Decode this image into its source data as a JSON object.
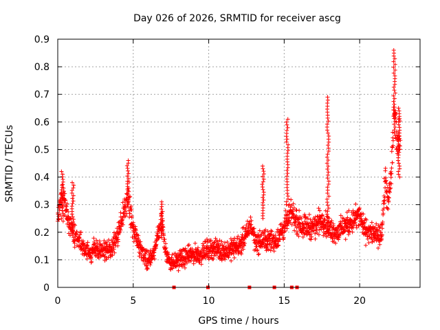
{
  "chart_data": {
    "type": "scatter",
    "title": "Day 026 of 2026, SRMTID for receiver ascg",
    "xlabel": "GPS time / hours",
    "ylabel": "SRMTID / TECUs",
    "xlim": [
      0,
      24
    ],
    "ylim": [
      0,
      0.9
    ],
    "x_ticks": [
      0,
      5,
      10,
      15,
      20
    ],
    "x_tick_labels": [
      "0",
      "5",
      "10",
      "15",
      "20"
    ],
    "y_ticks": [
      0,
      0.1,
      0.2,
      0.3,
      0.4,
      0.5,
      0.6,
      0.7,
      0.8,
      0.9
    ],
    "y_tick_labels": [
      "0",
      "0.1",
      "0.2",
      "0.3",
      "0.4",
      "0.5",
      "0.6",
      "0.7",
      "0.8",
      "0.9"
    ],
    "grid": true,
    "marker": "+",
    "series_color": "#ff0000",
    "grid_color": "#a0a0a0",
    "baseline_markers_x": [
      7.7,
      9.95,
      12.7,
      14.35,
      15.5,
      15.85
    ],
    "trend": [
      [
        0.0,
        0.26
      ],
      [
        0.3,
        0.33
      ],
      [
        0.5,
        0.31
      ],
      [
        0.8,
        0.22
      ],
      [
        1.0,
        0.21
      ],
      [
        1.3,
        0.17
      ],
      [
        1.7,
        0.15
      ],
      [
        2.0,
        0.12
      ],
      [
        2.5,
        0.14
      ],
      [
        3.0,
        0.13
      ],
      [
        3.5,
        0.14
      ],
      [
        4.0,
        0.19
      ],
      [
        4.3,
        0.26
      ],
      [
        4.7,
        0.33
      ],
      [
        5.0,
        0.2
      ],
      [
        5.3,
        0.16
      ],
      [
        5.7,
        0.12
      ],
      [
        6.0,
        0.1
      ],
      [
        6.3,
        0.11
      ],
      [
        6.6,
        0.19
      ],
      [
        6.9,
        0.24
      ],
      [
        7.2,
        0.12
      ],
      [
        7.5,
        0.09
      ],
      [
        8.0,
        0.1
      ],
      [
        8.5,
        0.11
      ],
      [
        9.0,
        0.12
      ],
      [
        9.5,
        0.12
      ],
      [
        10.0,
        0.14
      ],
      [
        10.5,
        0.14
      ],
      [
        11.0,
        0.13
      ],
      [
        11.5,
        0.14
      ],
      [
        12.0,
        0.15
      ],
      [
        12.5,
        0.19
      ],
      [
        12.8,
        0.23
      ],
      [
        13.0,
        0.18
      ],
      [
        13.3,
        0.16
      ],
      [
        13.6,
        0.17
      ],
      [
        14.0,
        0.17
      ],
      [
        14.5,
        0.17
      ],
      [
        15.0,
        0.22
      ],
      [
        15.5,
        0.27
      ],
      [
        16.0,
        0.23
      ],
      [
        16.5,
        0.22
      ],
      [
        17.0,
        0.22
      ],
      [
        17.5,
        0.25
      ],
      [
        18.0,
        0.21
      ],
      [
        18.5,
        0.2
      ],
      [
        19.0,
        0.22
      ],
      [
        19.5,
        0.24
      ],
      [
        20.0,
        0.26
      ],
      [
        20.3,
        0.21
      ],
      [
        20.7,
        0.2
      ],
      [
        21.0,
        0.19
      ],
      [
        21.3,
        0.18
      ],
      [
        21.5,
        0.21
      ],
      [
        21.7,
        0.4
      ],
      [
        21.9,
        0.3
      ],
      [
        22.1,
        0.42
      ],
      [
        22.3,
        0.66
      ],
      [
        22.5,
        0.52
      ],
      [
        22.7,
        0.55
      ]
    ],
    "spikes": [
      {
        "x": 0.3,
        "min": 0.24,
        "max": 0.42
      },
      {
        "x": 1.0,
        "min": 0.18,
        "max": 0.38
      },
      {
        "x": 4.65,
        "min": 0.3,
        "max": 0.46
      },
      {
        "x": 6.9,
        "min": 0.18,
        "max": 0.31
      },
      {
        "x": 13.6,
        "min": 0.25,
        "max": 0.44
      },
      {
        "x": 15.2,
        "min": 0.3,
        "max": 0.61
      },
      {
        "x": 17.9,
        "min": 0.2,
        "max": 0.69
      },
      {
        "x": 22.3,
        "min": 0.55,
        "max": 0.86
      },
      {
        "x": 22.6,
        "min": 0.4,
        "max": 0.65
      }
    ]
  }
}
